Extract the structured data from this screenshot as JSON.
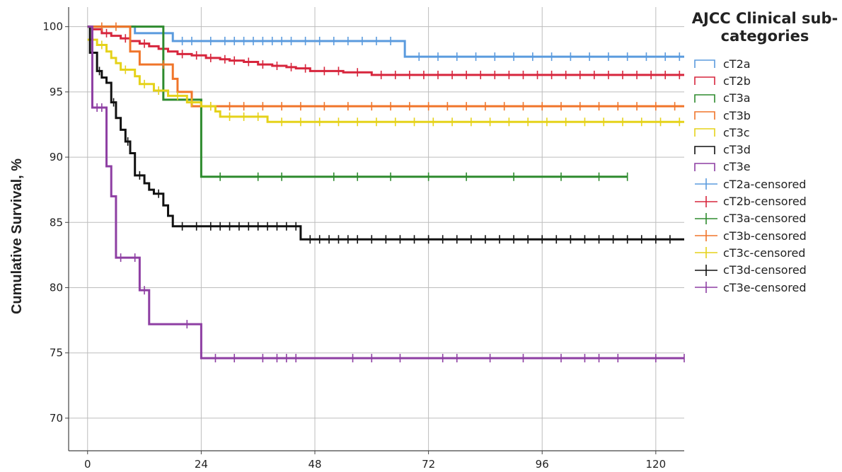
{
  "chart_data": {
    "type": "line",
    "step": true,
    "title": "",
    "xlabel": "",
    "ylabel": "Cumulative Survival, %",
    "xlim": [
      -4,
      126
    ],
    "ylim": [
      67.5,
      101.5
    ],
    "xticks": [
      0,
      24,
      48,
      72,
      96,
      120
    ],
    "yticks": [
      70,
      75,
      80,
      85,
      90,
      95,
      100
    ],
    "grid": true,
    "legend_title": "AJCC Clinical sub-categories",
    "legend_position": "right",
    "legend": [
      {
        "label": "cT2a",
        "color": "#5b9bde",
        "kind": "line"
      },
      {
        "label": "cT2b",
        "color": "#d7263d",
        "kind": "line"
      },
      {
        "label": "cT3a",
        "color": "#2e8b2e",
        "kind": "line"
      },
      {
        "label": "cT3b",
        "color": "#f0752a",
        "kind": "line"
      },
      {
        "label": "cT3c",
        "color": "#e5d21a",
        "kind": "line"
      },
      {
        "label": "cT3d",
        "color": "#111111",
        "kind": "line"
      },
      {
        "label": "cT3e",
        "color": "#8e3fa3",
        "kind": "line"
      },
      {
        "label": "cT2a-censored",
        "color": "#5b9bde",
        "kind": "censor"
      },
      {
        "label": "cT2b-censored",
        "color": "#d7263d",
        "kind": "censor"
      },
      {
        "label": "cT3a-censored",
        "color": "#2e8b2e",
        "kind": "censor"
      },
      {
        "label": "cT3b-censored",
        "color": "#f0752a",
        "kind": "censor"
      },
      {
        "label": "cT3c-censored",
        "color": "#e5d21a",
        "kind": "censor"
      },
      {
        "label": "cT3d-censored",
        "color": "#111111",
        "kind": "censor"
      },
      {
        "label": "cT3e-censored",
        "color": "#8e3fa3",
        "kind": "censor"
      }
    ],
    "series": [
      {
        "name": "cT2a",
        "color": "#5b9bde",
        "x_end": 126,
        "steps": [
          [
            0,
            100
          ],
          [
            10,
            99.5
          ],
          [
            18,
            98.9
          ],
          [
            67,
            97.7
          ]
        ],
        "censored": [
          [
            20,
            98.9
          ],
          [
            22,
            98.9
          ],
          [
            26,
            98.9
          ],
          [
            29,
            98.9
          ],
          [
            31,
            98.9
          ],
          [
            33,
            98.9
          ],
          [
            35,
            98.9
          ],
          [
            37,
            98.9
          ],
          [
            39,
            98.9
          ],
          [
            41,
            98.9
          ],
          [
            43,
            98.9
          ],
          [
            46,
            98.9
          ],
          [
            49,
            98.9
          ],
          [
            52,
            98.9
          ],
          [
            55,
            98.9
          ],
          [
            58,
            98.9
          ],
          [
            61,
            98.9
          ],
          [
            64,
            98.9
          ],
          [
            70,
            97.7
          ],
          [
            74,
            97.7
          ],
          [
            78,
            97.7
          ],
          [
            82,
            97.7
          ],
          [
            86,
            97.7
          ],
          [
            90,
            97.7
          ],
          [
            94,
            97.7
          ],
          [
            98,
            97.7
          ],
          [
            102,
            97.7
          ],
          [
            106,
            97.7
          ],
          [
            110,
            97.7
          ],
          [
            114,
            97.7
          ],
          [
            118,
            97.7
          ],
          [
            122,
            97.7
          ],
          [
            125,
            97.7
          ]
        ]
      },
      {
        "name": "cT2b",
        "color": "#d7263d",
        "x_end": 126,
        "steps": [
          [
            0,
            100
          ],
          [
            1,
            99.8
          ],
          [
            3,
            99.5
          ],
          [
            5,
            99.3
          ],
          [
            7,
            99.1
          ],
          [
            9,
            98.9
          ],
          [
            11,
            98.7
          ],
          [
            13,
            98.5
          ],
          [
            15,
            98.3
          ],
          [
            17,
            98.1
          ],
          [
            19,
            97.9
          ],
          [
            22,
            97.8
          ],
          [
            25,
            97.6
          ],
          [
            28,
            97.5
          ],
          [
            30,
            97.4
          ],
          [
            33,
            97.3
          ],
          [
            36,
            97.1
          ],
          [
            39,
            97.0
          ],
          [
            42,
            96.9
          ],
          [
            44,
            96.8
          ],
          [
            47,
            96.6
          ],
          [
            54,
            96.5
          ],
          [
            60,
            96.3
          ]
        ],
        "censored": [
          [
            4,
            99.5
          ],
          [
            8,
            99.1
          ],
          [
            12,
            98.7
          ],
          [
            16,
            98.3
          ],
          [
            20,
            97.9
          ],
          [
            23,
            97.8
          ],
          [
            26,
            97.6
          ],
          [
            29,
            97.5
          ],
          [
            31,
            97.4
          ],
          [
            34,
            97.3
          ],
          [
            37,
            97.1
          ],
          [
            40,
            97.0
          ],
          [
            43,
            96.9
          ],
          [
            46,
            96.8
          ],
          [
            50,
            96.6
          ],
          [
            53,
            96.6
          ],
          [
            57,
            96.5
          ],
          [
            62,
            96.3
          ],
          [
            65,
            96.3
          ],
          [
            68,
            96.3
          ],
          [
            71,
            96.3
          ],
          [
            74,
            96.3
          ],
          [
            77,
            96.3
          ],
          [
            80,
            96.3
          ],
          [
            83,
            96.3
          ],
          [
            86,
            96.3
          ],
          [
            89,
            96.3
          ],
          [
            92,
            96.3
          ],
          [
            95,
            96.3
          ],
          [
            98,
            96.3
          ],
          [
            101,
            96.3
          ],
          [
            104,
            96.3
          ],
          [
            107,
            96.3
          ],
          [
            110,
            96.3
          ],
          [
            113,
            96.3
          ],
          [
            116,
            96.3
          ],
          [
            119,
            96.3
          ],
          [
            122,
            96.3
          ],
          [
            125,
            96.3
          ]
        ]
      },
      {
        "name": "cT3a",
        "color": "#2e8b2e",
        "x_end": 114,
        "steps": [
          [
            0,
            100
          ],
          [
            16,
            94.4
          ],
          [
            24,
            88.5
          ]
        ],
        "censored": [
          [
            28,
            88.5
          ],
          [
            36,
            88.5
          ],
          [
            41,
            88.5
          ],
          [
            52,
            88.5
          ],
          [
            57,
            88.5
          ],
          [
            64,
            88.5
          ],
          [
            72,
            88.5
          ],
          [
            80,
            88.5
          ],
          [
            90,
            88.5
          ],
          [
            100,
            88.5
          ],
          [
            108,
            88.5
          ],
          [
            114,
            88.5
          ]
        ]
      },
      {
        "name": "cT3b",
        "color": "#f0752a",
        "x_end": 126,
        "steps": [
          [
            0,
            100
          ],
          [
            9,
            98.1
          ],
          [
            11,
            97.1
          ],
          [
            18,
            96.0
          ],
          [
            19,
            95.0
          ],
          [
            22,
            93.9
          ]
        ],
        "censored": [
          [
            3,
            100
          ],
          [
            6,
            100
          ],
          [
            16,
            97.1
          ],
          [
            26,
            93.9
          ],
          [
            30,
            93.9
          ],
          [
            33,
            93.9
          ],
          [
            37,
            93.9
          ],
          [
            41,
            93.9
          ],
          [
            45,
            93.9
          ],
          [
            50,
            93.9
          ],
          [
            55,
            93.9
          ],
          [
            60,
            93.9
          ],
          [
            64,
            93.9
          ],
          [
            68,
            93.9
          ],
          [
            72,
            93.9
          ],
          [
            76,
            93.9
          ],
          [
            80,
            93.9
          ],
          [
            84,
            93.9
          ],
          [
            88,
            93.9
          ],
          [
            92,
            93.9
          ],
          [
            96,
            93.9
          ],
          [
            100,
            93.9
          ],
          [
            104,
            93.9
          ],
          [
            108,
            93.9
          ],
          [
            112,
            93.9
          ],
          [
            116,
            93.9
          ],
          [
            120,
            93.9
          ],
          [
            124,
            93.9
          ]
        ]
      },
      {
        "name": "cT3c",
        "color": "#e5d21a",
        "x_end": 126,
        "steps": [
          [
            0,
            99.0
          ],
          [
            2,
            98.6
          ],
          [
            4,
            98.1
          ],
          [
            5,
            97.6
          ],
          [
            6,
            97.2
          ],
          [
            7,
            96.7
          ],
          [
            10,
            96.2
          ],
          [
            11,
            95.6
          ],
          [
            14,
            95.1
          ],
          [
            17,
            94.7
          ],
          [
            21,
            94.2
          ],
          [
            24,
            93.9
          ],
          [
            27,
            93.5
          ],
          [
            28,
            93.1
          ],
          [
            38,
            92.7
          ]
        ],
        "censored": [
          [
            1,
            99.0
          ],
          [
            3,
            98.6
          ],
          [
            8,
            96.7
          ],
          [
            12,
            95.6
          ],
          [
            15,
            95.1
          ],
          [
            19,
            94.7
          ],
          [
            22,
            94.2
          ],
          [
            26,
            93.9
          ],
          [
            30,
            93.1
          ],
          [
            33,
            93.1
          ],
          [
            36,
            93.1
          ],
          [
            41,
            92.7
          ],
          [
            45,
            92.7
          ],
          [
            49,
            92.7
          ],
          [
            53,
            92.7
          ],
          [
            57,
            92.7
          ],
          [
            61,
            92.7
          ],
          [
            65,
            92.7
          ],
          [
            69,
            92.7
          ],
          [
            73,
            92.7
          ],
          [
            77,
            92.7
          ],
          [
            81,
            92.7
          ],
          [
            85,
            92.7
          ],
          [
            89,
            92.7
          ],
          [
            93,
            92.7
          ],
          [
            97,
            92.7
          ],
          [
            101,
            92.7
          ],
          [
            105,
            92.7
          ],
          [
            109,
            92.7
          ],
          [
            113,
            92.7
          ],
          [
            117,
            92.7
          ],
          [
            121,
            92.7
          ],
          [
            125,
            92.7
          ]
        ]
      },
      {
        "name": "cT3d",
        "color": "#111111",
        "x_end": 126,
        "steps": [
          [
            0,
            100
          ],
          [
            0.5,
            98.0
          ],
          [
            2,
            96.6
          ],
          [
            3,
            96.1
          ],
          [
            4,
            95.7
          ],
          [
            5,
            94.2
          ],
          [
            6,
            93.0
          ],
          [
            7,
            92.1
          ],
          [
            8,
            91.2
          ],
          [
            9,
            90.3
          ],
          [
            10,
            88.6
          ],
          [
            12,
            88.0
          ],
          [
            13,
            87.5
          ],
          [
            14,
            87.2
          ],
          [
            16,
            86.3
          ],
          [
            17,
            85.5
          ],
          [
            18,
            84.7
          ],
          [
            45,
            83.7
          ]
        ],
        "censored": [
          [
            2.5,
            96.6
          ],
          [
            5.5,
            94.2
          ],
          [
            8.5,
            91.2
          ],
          [
            11,
            88.6
          ],
          [
            15,
            87.2
          ],
          [
            20,
            84.7
          ],
          [
            23,
            84.7
          ],
          [
            26,
            84.7
          ],
          [
            28,
            84.7
          ],
          [
            30,
            84.7
          ],
          [
            32,
            84.7
          ],
          [
            34,
            84.7
          ],
          [
            36,
            84.7
          ],
          [
            38,
            84.7
          ],
          [
            40,
            84.7
          ],
          [
            42,
            84.7
          ],
          [
            44,
            84.7
          ],
          [
            47,
            83.7
          ],
          [
            49,
            83.7
          ],
          [
            51,
            83.7
          ],
          [
            53,
            83.7
          ],
          [
            55,
            83.7
          ],
          [
            57,
            83.7
          ],
          [
            60,
            83.7
          ],
          [
            63,
            83.7
          ],
          [
            66,
            83.7
          ],
          [
            69,
            83.7
          ],
          [
            72,
            83.7
          ],
          [
            75,
            83.7
          ],
          [
            78,
            83.7
          ],
          [
            81,
            83.7
          ],
          [
            84,
            83.7
          ],
          [
            87,
            83.7
          ],
          [
            90,
            83.7
          ],
          [
            93,
            83.7
          ],
          [
            96,
            83.7
          ],
          [
            99,
            83.7
          ],
          [
            102,
            83.7
          ],
          [
            105,
            83.7
          ],
          [
            108,
            83.7
          ],
          [
            111,
            83.7
          ],
          [
            114,
            83.7
          ],
          [
            117,
            83.7
          ],
          [
            120,
            83.7
          ],
          [
            123,
            83.7
          ]
        ]
      },
      {
        "name": "cT3e",
        "color": "#8e3fa3",
        "x_end": 126,
        "steps": [
          [
            0,
            100
          ],
          [
            1,
            93.8
          ],
          [
            4,
            89.3
          ],
          [
            5,
            87.0
          ],
          [
            6,
            82.3
          ],
          [
            11,
            79.8
          ],
          [
            13,
            77.2
          ],
          [
            24,
            74.6
          ]
        ],
        "censored": [
          [
            2,
            93.8
          ],
          [
            3,
            93.8
          ],
          [
            7,
            82.3
          ],
          [
            10,
            82.3
          ],
          [
            12,
            79.8
          ],
          [
            21,
            77.2
          ],
          [
            27,
            74.6
          ],
          [
            31,
            74.6
          ],
          [
            37,
            74.6
          ],
          [
            40,
            74.6
          ],
          [
            42,
            74.6
          ],
          [
            44,
            74.6
          ],
          [
            56,
            74.6
          ],
          [
            60,
            74.6
          ],
          [
            66,
            74.6
          ],
          [
            75,
            74.6
          ],
          [
            78,
            74.6
          ],
          [
            85,
            74.6
          ],
          [
            92,
            74.6
          ],
          [
            100,
            74.6
          ],
          [
            105,
            74.6
          ],
          [
            108,
            74.6
          ],
          [
            112,
            74.6
          ],
          [
            120,
            74.6
          ],
          [
            126,
            74.6
          ]
        ]
      }
    ]
  }
}
